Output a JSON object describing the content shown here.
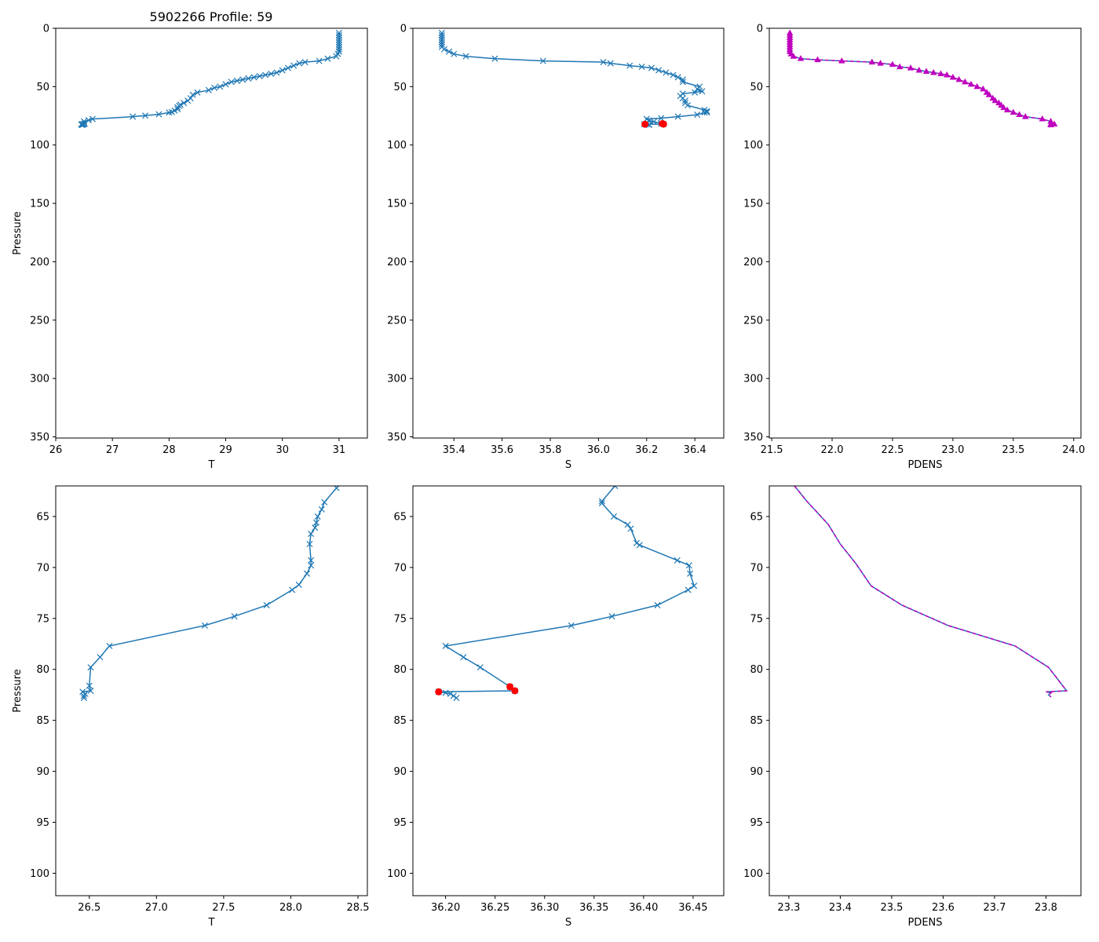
{
  "title": "5902266 Profile: 59",
  "colors": {
    "line": "#1f77b4",
    "flag": "#ff0000",
    "density": "#bf00bf",
    "axis": "#000000"
  },
  "chart_data": [
    {
      "type": "line",
      "panel": "top-left",
      "title": "5902266 Profile: 59",
      "xlabel": "T",
      "ylabel": "Pressure",
      "xlim": [
        26,
        31.5
      ],
      "ylim": [
        351,
        0
      ],
      "y_inverted": true,
      "xticks": [
        26,
        27,
        28,
        29,
        30,
        31
      ],
      "yticks": [
        0,
        50,
        100,
        150,
        200,
        250,
        300,
        350
      ],
      "xtick_labels": [
        "26",
        "27",
        "28",
        "29",
        "30",
        "31"
      ],
      "ytick_labels": [
        "0",
        "50",
        "100",
        "150",
        "200",
        "250",
        "300",
        "350"
      ],
      "marker": "x",
      "series": [
        {
          "name": "T",
          "x": [
            31.0,
            31.0,
            31.0,
            31.0,
            31.0,
            31.0,
            31.0,
            31.0,
            31.0,
            30.98,
            30.95,
            30.8,
            30.65,
            30.4,
            30.3,
            30.2,
            30.1,
            30.0,
            29.9,
            29.8,
            29.7,
            29.6,
            29.5,
            29.4,
            29.3,
            29.2,
            29.1,
            29.0,
            28.9,
            28.8,
            28.7,
            28.5,
            28.42,
            28.38,
            28.33,
            28.26,
            28.2,
            28.18,
            28.15,
            28.15,
            28.1,
            28.05,
            28.0,
            27.82,
            27.58,
            27.36,
            26.65,
            26.58,
            26.5,
            26.51,
            26.5,
            26.47,
            26.45,
            26.48,
            26.46,
            26.47
          ],
          "y": [
            4,
            6,
            8,
            10,
            12,
            14,
            16,
            18,
            20,
            22,
            24,
            26,
            28,
            29,
            30,
            32,
            34,
            36,
            38,
            39,
            40,
            41,
            42,
            43,
            44,
            45,
            46,
            48,
            50,
            51,
            53,
            55,
            57,
            60,
            62,
            64,
            65.5,
            66.5,
            67.7,
            69.3,
            70.5,
            71.8,
            72.2,
            73.7,
            74.8,
            75.7,
            77.7,
            78.8,
            79.8,
            81.6,
            82.1,
            82.2,
            82.3,
            82.4,
            82.6,
            82.8
          ]
        }
      ]
    },
    {
      "type": "line",
      "panel": "top-middle",
      "xlabel": "S",
      "ylabel": "",
      "xlim": [
        35.23,
        36.52
      ],
      "ylim": [
        351,
        0
      ],
      "y_inverted": true,
      "xticks": [
        35.4,
        35.6,
        35.8,
        36.0,
        36.2,
        36.4
      ],
      "yticks": [
        0,
        50,
        100,
        150,
        200,
        250,
        300,
        350
      ],
      "xtick_labels": [
        "35.4",
        "35.6",
        "35.8",
        "36.0",
        "36.2",
        "36.4"
      ],
      "ytick_labels": [
        "0",
        "50",
        "100",
        "150",
        "200",
        "250",
        "300",
        "350"
      ],
      "marker": "x",
      "series": [
        {
          "name": "S",
          "x": [
            35.35,
            35.35,
            35.35,
            35.35,
            35.35,
            35.35,
            35.35,
            35.36,
            35.38,
            35.4,
            35.45,
            35.57,
            35.77,
            36.02,
            36.05,
            36.13,
            36.18,
            36.22,
            36.25,
            36.28,
            36.31,
            36.33,
            36.35,
            36.35,
            36.42,
            36.41,
            36.43,
            36.4,
            36.35,
            36.34,
            36.35,
            36.36,
            36.36,
            36.37,
            36.44,
            36.45,
            36.44,
            36.45,
            36.41,
            36.33,
            36.26,
            36.2,
            36.21,
            36.23,
            36.26,
            36.27,
            36.19,
            36.2,
            36.21,
            36.21
          ],
          "y": [
            4,
            6,
            8,
            10,
            12,
            14,
            16,
            18,
            20,
            22,
            24,
            26,
            28,
            29,
            30,
            32,
            33,
            34,
            36,
            38,
            40,
            42,
            44,
            46,
            50,
            52,
            54,
            55,
            56,
            58,
            60,
            62,
            64,
            66,
            70,
            71,
            72,
            72,
            74,
            75.7,
            77,
            77.7,
            79,
            80,
            81.7,
            82.1,
            82.2,
            82.3,
            82.5,
            82.8
          ]
        }
      ],
      "flagged": {
        "x": [
          36.193,
          36.265,
          36.27
        ],
        "y": [
          82.2,
          81.7,
          82.1
        ]
      }
    },
    {
      "type": "line",
      "panel": "top-right",
      "xlabel": "PDENS",
      "ylabel": "",
      "xlim": [
        21.48,
        24.06
      ],
      "ylim": [
        351,
        0
      ],
      "y_inverted": true,
      "xticks": [
        21.5,
        22.0,
        22.5,
        23.0,
        23.5,
        24.0
      ],
      "yticks": [
        0,
        50,
        100,
        150,
        200,
        250,
        300,
        350
      ],
      "xtick_labels": [
        "21.5",
        "22.0",
        "22.5",
        "23.0",
        "23.5",
        "24.0"
      ],
      "ytick_labels": [
        "0",
        "50",
        "100",
        "150",
        "200",
        "250",
        "300",
        "350"
      ],
      "marker": "triangle",
      "series": [
        {
          "name": "PDENS",
          "x": [
            21.65,
            21.65,
            21.65,
            21.65,
            21.65,
            21.65,
            21.65,
            21.65,
            21.65,
            21.66,
            21.68,
            21.74,
            21.88,
            22.08,
            22.33,
            22.4,
            22.5,
            22.56,
            22.65,
            22.72,
            22.78,
            22.84,
            22.9,
            22.95,
            23.0,
            23.05,
            23.1,
            23.15,
            23.2,
            23.25,
            23.28,
            23.3,
            23.33,
            23.35,
            23.38,
            23.4,
            23.42,
            23.45,
            23.5,
            23.55,
            23.6,
            23.74,
            23.81,
            23.84,
            23.81,
            23.81
          ],
          "y": [
            4,
            6,
            8,
            10,
            12,
            14,
            16,
            18,
            20,
            22,
            24,
            26,
            27,
            28,
            29,
            30,
            31,
            33,
            34,
            36,
            37,
            38,
            39,
            40,
            42,
            44,
            46,
            48,
            50,
            52,
            55,
            57,
            60,
            62,
            64,
            66,
            68,
            70,
            72,
            74,
            75.7,
            77.7,
            79.8,
            82.1,
            82.2,
            82.8
          ]
        }
      ]
    },
    {
      "type": "line",
      "panel": "bottom-left",
      "xlabel": "T",
      "ylabel": "Pressure",
      "xlim": [
        26.25,
        28.57
      ],
      "ylim": [
        102.2,
        62
      ],
      "y_inverted": true,
      "xticks": [
        26.5,
        27.0,
        27.5,
        28.0,
        28.5
      ],
      "yticks": [
        65,
        70,
        75,
        80,
        85,
        90,
        95,
        100
      ],
      "xtick_labels": [
        "26.5",
        "27.0",
        "27.5",
        "28.0",
        "28.5"
      ],
      "ytick_labels": [
        "65",
        "70",
        "75",
        "80",
        "85",
        "90",
        "95",
        "100"
      ],
      "marker": "x",
      "series": [
        {
          "name": "T",
          "x": [
            28.4,
            28.34,
            28.25,
            28.23,
            28.2,
            28.19,
            28.18,
            28.15,
            28.14,
            28.15,
            28.15,
            28.12,
            28.06,
            28.01,
            27.82,
            27.58,
            27.36,
            26.65,
            26.58,
            26.51,
            26.5,
            26.51,
            26.45,
            26.47,
            26.46,
            26.46
          ],
          "y": [
            61.5,
            62.2,
            63.6,
            64.3,
            65.0,
            65.6,
            66.1,
            66.7,
            67.7,
            69.3,
            69.8,
            70.6,
            71.7,
            72.2,
            73.7,
            74.8,
            75.7,
            77.7,
            78.8,
            79.8,
            81.6,
            82.1,
            82.2,
            82.4,
            82.6,
            82.8
          ]
        }
      ]
    },
    {
      "type": "line",
      "panel": "bottom-middle",
      "xlabel": "S",
      "ylabel": "",
      "xlim": [
        36.167,
        36.481
      ],
      "ylim": [
        102.2,
        62
      ],
      "y_inverted": true,
      "xticks": [
        36.2,
        36.25,
        36.3,
        36.35,
        36.4,
        36.45
      ],
      "yticks": [
        65,
        70,
        75,
        80,
        85,
        90,
        95,
        100
      ],
      "xtick_labels": [
        "36.20",
        "36.25",
        "36.30",
        "36.35",
        "36.40",
        "36.45"
      ],
      "ytick_labels": [
        "65",
        "70",
        "75",
        "80",
        "85",
        "90",
        "95",
        "100"
      ],
      "marker": "x",
      "series": [
        {
          "name": "S",
          "x": [
            36.376,
            36.371,
            36.358,
            36.358,
            36.37,
            36.384,
            36.387,
            36.393,
            36.396,
            36.434,
            36.446,
            36.447,
            36.451,
            36.445,
            36.414,
            36.368,
            36.327,
            36.2,
            36.218,
            36.235,
            36.265,
            36.27,
            36.193,
            36.2,
            36.205,
            36.208,
            36.211
          ],
          "y": [
            61.3,
            62.0,
            63.5,
            63.7,
            65.0,
            65.8,
            66.2,
            67.6,
            67.8,
            69.3,
            69.8,
            70.6,
            71.8,
            72.2,
            73.7,
            74.8,
            75.7,
            77.7,
            78.8,
            79.8,
            81.7,
            82.1,
            82.2,
            82.3,
            82.4,
            82.6,
            82.8
          ]
        }
      ],
      "flagged": {
        "x": [
          36.193,
          36.265,
          36.27
        ],
        "y": [
          82.2,
          81.7,
          82.1
        ]
      }
    },
    {
      "type": "line",
      "panel": "bottom-right",
      "xlabel": "PDENS",
      "ylabel": "",
      "xlim": [
        23.262,
        23.868
      ],
      "ylim": [
        102.2,
        62
      ],
      "y_inverted": true,
      "xticks": [
        23.3,
        23.4,
        23.5,
        23.6,
        23.7,
        23.8
      ],
      "yticks": [
        65,
        70,
        75,
        80,
        85,
        90,
        95,
        100
      ],
      "xtick_labels": [
        "23.3",
        "23.4",
        "23.5",
        "23.6",
        "23.7",
        "23.8"
      ],
      "ytick_labels": [
        "65",
        "70",
        "75",
        "80",
        "85",
        "90",
        "95",
        "100"
      ],
      "marker": "none",
      "series": [
        {
          "name": "PDENS",
          "x": [
            23.303,
            23.335,
            23.377,
            23.4,
            23.43,
            23.46,
            23.52,
            23.61,
            23.74,
            23.805,
            23.84,
            23.8,
            23.81,
            23.805,
            23.81
          ],
          "y": [
            61.5,
            63.5,
            65.8,
            67.7,
            69.6,
            71.8,
            73.7,
            75.7,
            77.7,
            79.8,
            82.1,
            82.2,
            82.3,
            82.5,
            82.7
          ]
        }
      ]
    }
  ]
}
